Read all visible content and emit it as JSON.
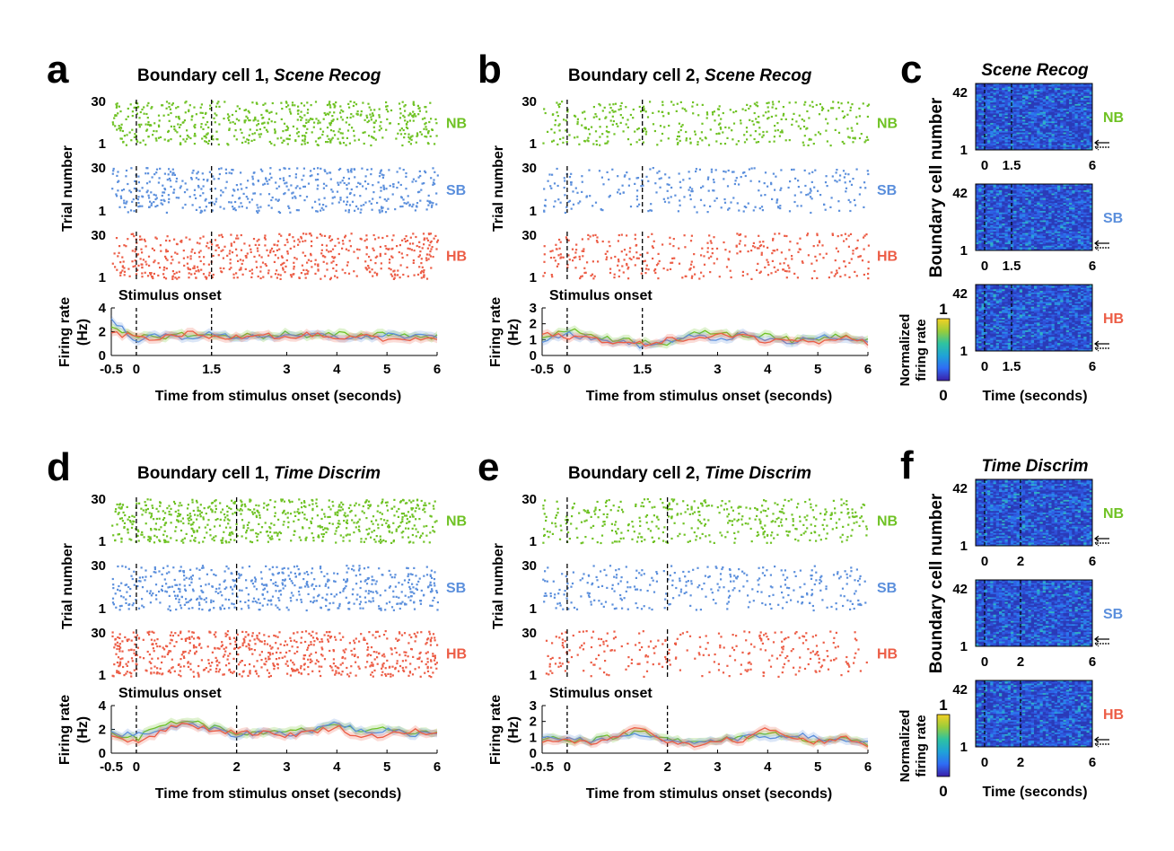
{
  "colors": {
    "NB": "#6fc224",
    "SB": "#5b8fdc",
    "HB": "#ec5d46",
    "axis": "#000000",
    "colorbar": [
      "#3a1fa8",
      "#2f6cf5",
      "#1fa3d8",
      "#2ec3a0",
      "#9acd3a",
      "#f4d024"
    ]
  },
  "panels": {
    "a": {
      "letter": "a",
      "title": "Boundary cell 1, ",
      "title_italic": "Scene Recog"
    },
    "b": {
      "letter": "b",
      "title": "Boundary cell 2, ",
      "title_italic": "Scene Recog"
    },
    "c": {
      "letter": "c",
      "title_italic": "Scene Recog"
    },
    "d": {
      "letter": "d",
      "title": "Boundary cell 1, ",
      "title_italic": "Time Discrim"
    },
    "e": {
      "letter": "e",
      "title": "Boundary cell 2, ",
      "title_italic": "Time Discrim"
    },
    "f": {
      "letter": "f",
      "title_italic": "Time Discrim"
    }
  },
  "labels": {
    "trial_number": "Trial number",
    "firing_rate": "Firing rate",
    "firing_rate_unit": "(Hz)",
    "stimulus_onset": "Stimulus onset",
    "xlabel": "Time from stimulus onset (seconds)",
    "boundary_cell_number": "Boundary cell number",
    "time_seconds": "Time (seconds)",
    "normalized": "Normalized",
    "firing_rate_lower": "firing rate",
    "cb_max": "1",
    "cb_min": "0"
  },
  "conditions": [
    "NB",
    "SB",
    "HB"
  ],
  "raster_ticks": {
    "top": "30",
    "bottom": "1"
  },
  "heatmap_ticks": {
    "top": "42",
    "bottom": "1"
  },
  "chart_data": [
    {
      "panel": "a",
      "type": "raster+line",
      "title": "Boundary cell 1, Scene Recog",
      "xlabel": "Time from stimulus onset (seconds)",
      "xlim": [
        -0.5,
        6
      ],
      "xticks": [
        "-0.5",
        "0",
        "1.5",
        "3",
        "4",
        "5",
        "6"
      ],
      "xtick_values": [
        -0.5,
        0,
        1.5,
        3,
        4,
        5,
        6
      ],
      "event_lines": [
        0,
        1.5
      ],
      "raster_ylim": [
        1,
        30
      ],
      "raster_ylabel": "Trial number",
      "raster_spike_density": {
        "NB": 0.85,
        "SB": 0.7,
        "HB": 0.8
      },
      "rate_ylim": [
        0,
        4
      ],
      "rate_yticks": [
        "0",
        "2",
        "4"
      ],
      "rate_ylabel": "Firing rate (Hz)",
      "x": [
        -0.5,
        0,
        0.5,
        1,
        1.5,
        2,
        2.5,
        3,
        3.5,
        4,
        4.5,
        5,
        5.5,
        6
      ],
      "series": [
        {
          "name": "NB",
          "values": [
            2.2,
            1.5,
            1.6,
            1.8,
            1.6,
            1.7,
            1.6,
            1.9,
            1.5,
            1.8,
            1.7,
            1.9,
            1.6,
            1.6
          ]
        },
        {
          "name": "SB",
          "values": [
            3.0,
            1.3,
            1.7,
            1.5,
            1.8,
            1.5,
            1.7,
            1.5,
            1.7,
            1.6,
            1.4,
            1.8,
            1.5,
            1.7
          ]
        },
        {
          "name": "HB",
          "values": [
            1.8,
            1.6,
            1.4,
            1.9,
            1.5,
            1.6,
            1.9,
            1.4,
            1.8,
            1.2,
            1.6,
            1.3,
            1.5,
            1.4
          ]
        }
      ]
    },
    {
      "panel": "b",
      "type": "raster+line",
      "title": "Boundary cell 2, Scene Recog",
      "xlabel": "Time from stimulus onset (seconds)",
      "xlim": [
        -0.5,
        6
      ],
      "xticks": [
        "-0.5",
        "0",
        "1.5",
        "3",
        "4",
        "5",
        "6"
      ],
      "xtick_values": [
        -0.5,
        0,
        1.5,
        3,
        4,
        5,
        6
      ],
      "event_lines": [
        0,
        1.5
      ],
      "raster_ylim": [
        1,
        30
      ],
      "raster_ylabel": "Trial number",
      "raster_spike_density": {
        "NB": 0.55,
        "SB": 0.4,
        "HB": 0.5
      },
      "rate_ylim": [
        0,
        3
      ],
      "rate_yticks": [
        "0",
        "1",
        "2",
        "3"
      ],
      "rate_ylabel": "Firing rate (Hz)",
      "x": [
        -0.5,
        0,
        0.5,
        1,
        1.5,
        2,
        2.5,
        3,
        3.5,
        4,
        4.5,
        5,
        5.5,
        6
      ],
      "series": [
        {
          "name": "NB",
          "values": [
            1.2,
            1.6,
            1.3,
            1.0,
            0.9,
            0.8,
            1.3,
            1.5,
            1.2,
            1.4,
            0.9,
            1.1,
            1.3,
            1.0
          ]
        },
        {
          "name": "SB",
          "values": [
            1.0,
            1.4,
            1.0,
            0.9,
            0.6,
            0.9,
            1.2,
            1.0,
            1.3,
            1.0,
            0.8,
            1.2,
            1.0,
            0.9
          ]
        },
        {
          "name": "HB",
          "values": [
            1.3,
            1.2,
            1.1,
            0.8,
            0.7,
            1.0,
            1.0,
            1.2,
            1.4,
            0.8,
            1.1,
            0.9,
            1.2,
            0.8
          ]
        }
      ]
    },
    {
      "panel": "d",
      "type": "raster+line",
      "title": "Boundary cell 1, Time Discrim",
      "xlabel": "Time from stimulus onset (seconds)",
      "xlim": [
        -0.5,
        6
      ],
      "xticks": [
        "-0.5",
        "0",
        "2",
        "3",
        "4",
        "5",
        "6"
      ],
      "xtick_values": [
        -0.5,
        0,
        2,
        3,
        4,
        5,
        6
      ],
      "event_lines": [
        0,
        2
      ],
      "raster_ylim": [
        1,
        30
      ],
      "raster_ylabel": "Trial number",
      "raster_spike_density": {
        "NB": 0.95,
        "SB": 0.8,
        "HB": 0.95
      },
      "rate_ylim": [
        0,
        4
      ],
      "rate_yticks": [
        "0",
        "2",
        "4"
      ],
      "rate_ylabel": "Firing rate (Hz)",
      "x": [
        -0.5,
        0,
        0.5,
        1,
        1.5,
        2,
        2.5,
        3,
        3.5,
        4,
        4.5,
        5,
        5.5,
        6
      ],
      "series": [
        {
          "name": "NB",
          "values": [
            1.8,
            1.2,
            2.4,
            2.8,
            2.2,
            1.7,
            1.6,
            1.8,
            2.0,
            2.5,
            1.6,
            2.1,
            1.8,
            1.7
          ]
        },
        {
          "name": "SB",
          "values": [
            1.7,
            1.5,
            2.0,
            2.4,
            2.0,
            1.5,
            1.8,
            1.6,
            1.9,
            2.6,
            1.8,
            1.9,
            1.6,
            1.8
          ]
        },
        {
          "name": "HB",
          "values": [
            1.4,
            1.0,
            1.8,
            2.6,
            1.9,
            1.8,
            1.7,
            1.5,
            1.8,
            2.2,
            1.3,
            1.6,
            1.9,
            1.5
          ]
        }
      ]
    },
    {
      "panel": "e",
      "type": "raster+line",
      "title": "Boundary cell 2, Time Discrim",
      "xlabel": "Time from stimulus onset (seconds)",
      "xlim": [
        -0.5,
        6
      ],
      "xticks": [
        "-0.5",
        "0",
        "2",
        "3",
        "4",
        "5",
        "6"
      ],
      "xtick_values": [
        -0.5,
        0,
        2,
        3,
        4,
        5,
        6
      ],
      "event_lines": [
        0,
        2
      ],
      "raster_ylim": [
        1,
        30
      ],
      "raster_ylabel": "Trial number",
      "raster_spike_density": {
        "NB": 0.6,
        "SB": 0.45,
        "HB": 0.4
      },
      "rate_ylim": [
        0,
        3
      ],
      "rate_yticks": [
        "0",
        "1",
        "2",
        "3"
      ],
      "rate_ylabel": "Firing rate (Hz)",
      "x": [
        -0.5,
        0,
        0.5,
        1,
        1.5,
        2,
        2.5,
        3,
        3.5,
        4,
        4.5,
        5,
        5.5,
        6
      ],
      "series": [
        {
          "name": "NB",
          "values": [
            1.0,
            0.9,
            0.8,
            1.1,
            1.4,
            1.0,
            0.6,
            0.8,
            1.0,
            1.3,
            1.0,
            0.8,
            0.9,
            0.6
          ]
        },
        {
          "name": "SB",
          "values": [
            0.9,
            1.0,
            0.7,
            0.9,
            1.2,
            0.8,
            0.7,
            0.7,
            1.0,
            1.0,
            1.2,
            0.9,
            0.8,
            0.7
          ]
        },
        {
          "name": "HB",
          "values": [
            0.8,
            0.7,
            0.6,
            1.0,
            1.7,
            0.6,
            0.5,
            0.9,
            0.7,
            1.6,
            0.9,
            0.7,
            1.0,
            0.5
          ]
        }
      ]
    },
    {
      "panel": "c",
      "type": "heatmap",
      "title": "Scene Recog",
      "ylabel": "Boundary cell number",
      "xlabel": "Time (seconds)",
      "xticks": [
        "0",
        "1.5",
        "6"
      ],
      "xtick_values": [
        0,
        1.5,
        6
      ],
      "xlim": [
        -0.5,
        6
      ],
      "event_lines": [
        0,
        1.5
      ],
      "ylim": [
        1,
        42
      ],
      "rows": [
        "NB",
        "SB",
        "HB"
      ],
      "colorbar": {
        "label": "Normalized firing rate",
        "range": [
          0,
          1
        ]
      }
    },
    {
      "panel": "f",
      "type": "heatmap",
      "title": "Time Discrim",
      "ylabel": "Boundary cell number",
      "xlabel": "Time (seconds)",
      "xticks": [
        "0",
        "2",
        "6"
      ],
      "xtick_values": [
        0,
        2,
        6
      ],
      "xlim": [
        -0.5,
        6
      ],
      "event_lines": [
        0,
        2
      ],
      "ylim": [
        1,
        42
      ],
      "rows": [
        "NB",
        "SB",
        "HB"
      ],
      "colorbar": {
        "label": "Normalized firing rate",
        "range": [
          0,
          1
        ]
      }
    }
  ]
}
